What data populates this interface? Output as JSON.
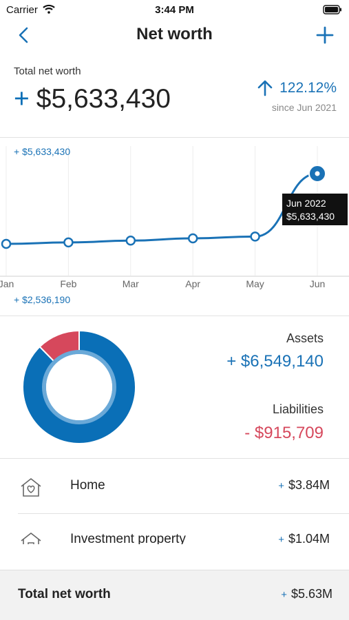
{
  "status_bar": {
    "carrier": "Carrier",
    "time": "3:44 PM"
  },
  "nav": {
    "title": "Net worth"
  },
  "summary": {
    "label": "Total net worth",
    "sign": "+",
    "value": "$5,633,430",
    "change_percent": "122.12%",
    "change_since": "since Jun 2021"
  },
  "chart": {
    "max_label": "+ $5,633,430",
    "min_label": "+ $2,536,190",
    "tooltip": {
      "month": "Jun 2022",
      "value": "$5,633,430"
    }
  },
  "chart_data": {
    "type": "line",
    "categories": [
      "Jan",
      "Feb",
      "Mar",
      "Apr",
      "May",
      "Jun"
    ],
    "series": [
      {
        "values": [
          2536190,
          2600000,
          2680000,
          2780000,
          2860000,
          5633430
        ]
      }
    ],
    "ylim": [
      2536190,
      5633430
    ],
    "grid": true,
    "color": "#1a72b6"
  },
  "breakdown": {
    "assets_label": "Assets",
    "assets_value": "+ $6,549,140",
    "liabilities_label": "Liabilities",
    "liabilities_value": "- $915,709",
    "asset_fraction": 0.877,
    "assets_color": "#0a6fb7",
    "liabilities_color": "#d6485c"
  },
  "list": [
    {
      "icon": "home-icon",
      "label": "Home",
      "sign": "+",
      "value": "$3.84M"
    },
    {
      "icon": "investment-property-icon",
      "label": "Investment property",
      "sign": "+",
      "value": "$1.04M"
    }
  ],
  "footer": {
    "label": "Total net worth",
    "sign": "+",
    "value": "$5.63M"
  }
}
